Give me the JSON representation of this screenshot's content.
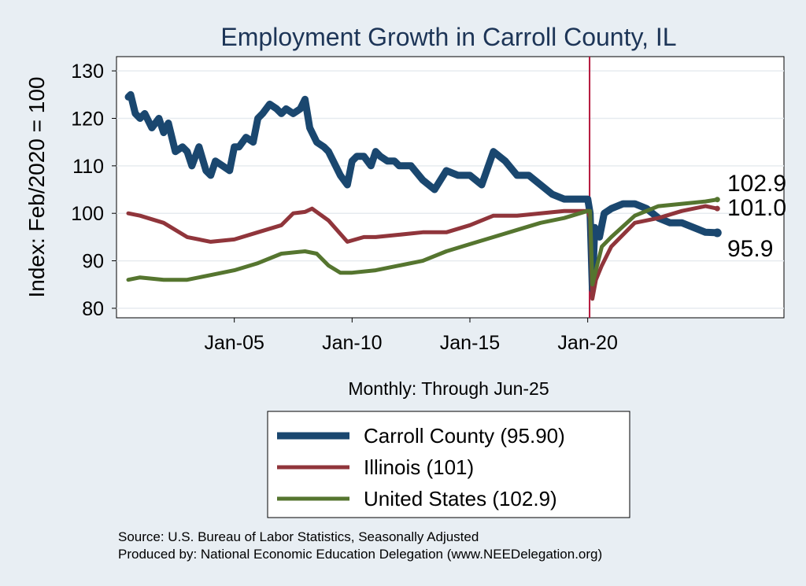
{
  "chart_data": {
    "type": "line",
    "title": "Employment Growth in Carroll  County, IL",
    "ylabel": "Index: Feb/2020 = 100",
    "xlabel": "Monthly: Through Jun-25",
    "ylim": [
      78,
      133
    ],
    "yticks": [
      80,
      90,
      100,
      110,
      120,
      130
    ],
    "xlim": [
      2000.0,
      2028.33
    ],
    "xticks": [
      {
        "value": 2005.0,
        "label": "Jan-05"
      },
      {
        "value": 2010.0,
        "label": "Jan-10"
      },
      {
        "value": 2015.0,
        "label": "Jan-15"
      },
      {
        "value": 2020.0,
        "label": "Jan-20"
      }
    ],
    "reference_line": {
      "x": 2020.08,
      "color": "#b5173c"
    },
    "series": [
      {
        "name": "Carroll  County",
        "legend": "Carroll  County (95.90)",
        "end_label": "95.9",
        "color": "#1a476f",
        "width": 9,
        "x": [
          2000.5,
          2000.6,
          2000.8,
          2001.0,
          2001.2,
          2001.5,
          2001.8,
          2002.0,
          2002.2,
          2002.5,
          2002.8,
          2003.0,
          2003.2,
          2003.5,
          2003.8,
          2004.0,
          2004.2,
          2004.5,
          2004.8,
          2005.0,
          2005.2,
          2005.5,
          2005.8,
          2006.0,
          2006.2,
          2006.5,
          2006.8,
          2007.0,
          2007.2,
          2007.5,
          2007.8,
          2008.0,
          2008.2,
          2008.5,
          2008.8,
          2009.0,
          2009.2,
          2009.5,
          2009.8,
          2010.0,
          2010.2,
          2010.5,
          2010.8,
          2011.0,
          2011.2,
          2011.5,
          2011.8,
          2012.0,
          2012.5,
          2013.0,
          2013.5,
          2014.0,
          2014.5,
          2015.0,
          2015.5,
          2016.0,
          2016.5,
          2017.0,
          2017.5,
          2018.0,
          2018.5,
          2019.0,
          2019.5,
          2020.0,
          2020.1,
          2020.2,
          2020.3,
          2020.5,
          2020.7,
          2021.0,
          2021.5,
          2022.0,
          2022.5,
          2023.0,
          2023.5,
          2024.0,
          2024.5,
          2025.0,
          2025.5
        ],
        "y": [
          124.5,
          125,
          121,
          120,
          121,
          118,
          120,
          117,
          119,
          113,
          114,
          113,
          110,
          114,
          109,
          108,
          111,
          110,
          109,
          114,
          114,
          116,
          115,
          120,
          121,
          123,
          122,
          121,
          122,
          121,
          122,
          124,
          118,
          115,
          114,
          113,
          111,
          108,
          106,
          111,
          112,
          112,
          110,
          113,
          112,
          111,
          111,
          110,
          110,
          107,
          105,
          109,
          108,
          108,
          106,
          113,
          111,
          108,
          108,
          106,
          104,
          103,
          103,
          103,
          100,
          84,
          97,
          95,
          100,
          101,
          102,
          102,
          101,
          99,
          98,
          98,
          97,
          96,
          95.9
        ]
      },
      {
        "name": "Illinois",
        "legend": "Illinois (101)",
        "end_label": "101.0",
        "color": "#90353b",
        "width": 5,
        "x": [
          2000.5,
          2001.0,
          2002.0,
          2003.0,
          2004.0,
          2005.0,
          2006.0,
          2007.0,
          2007.5,
          2008.0,
          2008.3,
          2009.0,
          2009.8,
          2010.5,
          2011.0,
          2012.0,
          2013.0,
          2014.0,
          2015.0,
          2016.0,
          2017.0,
          2018.0,
          2019.0,
          2020.0,
          2020.1,
          2020.2,
          2020.35,
          2020.6,
          2021.0,
          2022.0,
          2023.0,
          2024.0,
          2025.0,
          2025.5
        ],
        "y": [
          100,
          99.5,
          98,
          95,
          94,
          94.5,
          96,
          97.5,
          100,
          100.3,
          101,
          98.5,
          94,
          95,
          95,
          95.5,
          96,
          96,
          97.5,
          99.5,
          99.5,
          100,
          100.5,
          100.5,
          99,
          82,
          86,
          89,
          93,
          98,
          99,
          100.5,
          101.5,
          101.0
        ]
      },
      {
        "name": "United States",
        "legend": "United States (102.9)",
        "end_label": "102.9",
        "color": "#55752f",
        "width": 5,
        "x": [
          2000.5,
          2001.0,
          2002.0,
          2003.0,
          2004.0,
          2005.0,
          2006.0,
          2007.0,
          2008.0,
          2008.5,
          2009.0,
          2009.5,
          2010.0,
          2011.0,
          2012.0,
          2013.0,
          2014.0,
          2015.0,
          2016.0,
          2017.0,
          2018.0,
          2019.0,
          2020.0,
          2020.1,
          2020.2,
          2020.35,
          2020.6,
          2021.0,
          2022.0,
          2023.0,
          2024.0,
          2025.0,
          2025.5
        ],
        "y": [
          86,
          86.5,
          86,
          86,
          87,
          88,
          89.5,
          91.5,
          92,
          91.5,
          89,
          87.5,
          87.5,
          88,
          89,
          90,
          92,
          93.5,
          95,
          96.5,
          98,
          99,
          100.5,
          100.5,
          85,
          88,
          93,
          95,
          99.5,
          101.5,
          102,
          102.5,
          102.9
        ]
      }
    ],
    "source_lines": [
      "Source: U.S. Bureau of Labor Statistics, Seasonally Adjusted",
      "Produced by: National Economic Education Delegation (www.NEEDelegation.org)"
    ]
  }
}
